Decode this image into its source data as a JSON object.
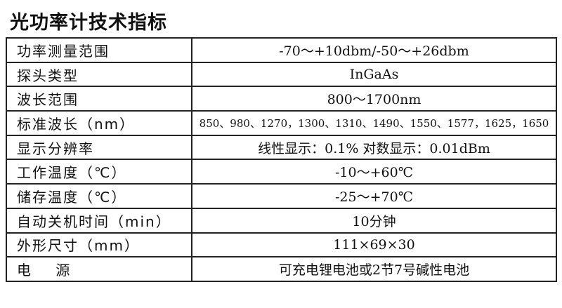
{
  "title": "光功率计技术指标",
  "rows": [
    {
      "label": "功率测量范围",
      "value": "-70～+10dbm/-50～+26dbm"
    },
    {
      "label": "探头类型",
      "value": "InGaAs"
    },
    {
      "label": "波长范围",
      "value": "800～1700nm"
    },
    {
      "label": "标准波长（nm）",
      "value": "850、980、1270，1300、1310、1490、1550、1577，1625，1650"
    },
    {
      "label": "显示分辨率",
      "value": "线性显示：0.1%  对数显示：0.01dBm"
    },
    {
      "label": "工作温度（℃）",
      "value": "-10～+60℃"
    },
    {
      "label": "储存温度（℃）",
      "value": "-25～+70℃"
    },
    {
      "label": "自动关机时间（min）",
      "value": "10分钟"
    },
    {
      "label": "外形尺寸（mm）",
      "value": "111×69×30"
    },
    {
      "label": "电    源",
      "value": "可充电锂电池或2节7号碱性电池"
    }
  ]
}
